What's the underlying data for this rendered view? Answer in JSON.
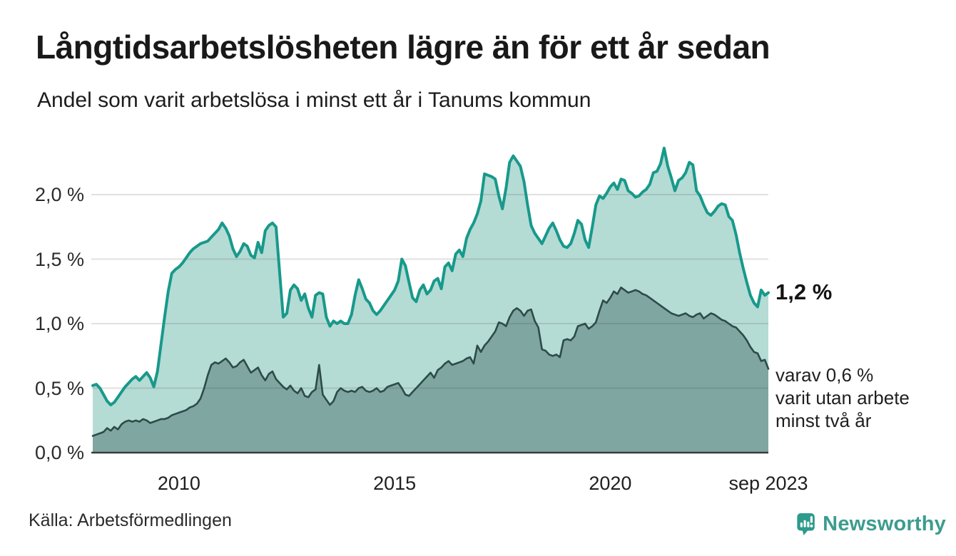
{
  "header": {
    "title": "Långtidsarbetslösheten lägre än för ett år sedan",
    "subtitle": "Andel som varit arbetslösa i minst ett år i Tanums kommun"
  },
  "annotations": {
    "latest_value_label": "1,2 %",
    "secondary_note_lines": [
      "varav 0,6 %",
      "varit utan arbete",
      "minst två år"
    ]
  },
  "footer": {
    "source": "Källa: Arbetsförmedlingen",
    "branding_name": "Newsworthy"
  },
  "colors": {
    "series1_line": "#18998b",
    "series1_fill": "#b5dbd5",
    "series2_line": "#2d4b48",
    "series2_fill": "#7fa6a0",
    "gridline": "rgba(70,70,70,0.16)",
    "axis": "#3b3b3b",
    "brand_teal": "#3c9c8f",
    "brand_icon": "#2d9a8c"
  },
  "chart_data": {
    "type": "area",
    "title": "Långtidsarbetslösheten lägre än för ett år sedan",
    "subtitle": "Andel som varit arbetslösa i minst ett år i Tanums kommun",
    "source": "Källa: Arbetsförmedlingen",
    "unit": "%",
    "frequency": "monthly",
    "x_start": "2008-01",
    "x_end": "2023-09",
    "ylim": [
      0,
      2.45
    ],
    "grid": true,
    "legend_position": "right-annotations",
    "x_ticks": [
      {
        "label": "2010",
        "month_index": 24
      },
      {
        "label": "2015",
        "month_index": 84
      },
      {
        "label": "2020",
        "month_index": 144
      },
      {
        "label": "sep 2023",
        "month_index": 188
      }
    ],
    "y_ticks": [
      {
        "label": "0,0 %",
        "value": 0
      },
      {
        "label": "0,5 %",
        "value": 0.5
      },
      {
        "label": "1,0 %",
        "value": 1.0
      },
      {
        "label": "1,5 %",
        "value": 1.5
      },
      {
        "label": "2,0 %",
        "value": 2.0
      }
    ],
    "annotations": [
      {
        "text": "1,2 %",
        "series": 0,
        "meaning": "latest value, share unemployed at least one year"
      },
      {
        "text": "varav 0,6 % varit utan arbete minst två år",
        "series": 1,
        "meaning": "latest value, share unemployed at least two years"
      }
    ],
    "series": [
      {
        "name": "Andel arbetslösa minst ett år",
        "color": "#18998b",
        "fill": "#b5dbd5",
        "latest_value": 1.2,
        "values": [
          0.52,
          0.53,
          0.5,
          0.45,
          0.4,
          0.37,
          0.39,
          0.43,
          0.47,
          0.51,
          0.54,
          0.57,
          0.59,
          0.56,
          0.59,
          0.62,
          0.58,
          0.51,
          0.63,
          0.84,
          1.05,
          1.25,
          1.39,
          1.42,
          1.44,
          1.47,
          1.51,
          1.55,
          1.58,
          1.6,
          1.62,
          1.63,
          1.64,
          1.67,
          1.7,
          1.73,
          1.78,
          1.74,
          1.68,
          1.58,
          1.52,
          1.56,
          1.62,
          1.6,
          1.53,
          1.51,
          1.63,
          1.55,
          1.72,
          1.76,
          1.78,
          1.75,
          1.4,
          1.05,
          1.08,
          1.26,
          1.3,
          1.27,
          1.18,
          1.23,
          1.12,
          1.05,
          1.22,
          1.24,
          1.23,
          1.05,
          0.98,
          1.02,
          1.0,
          1.02,
          1.0,
          1.0,
          1.07,
          1.22,
          1.34,
          1.27,
          1.19,
          1.16,
          1.1,
          1.07,
          1.1,
          1.14,
          1.18,
          1.22,
          1.26,
          1.33,
          1.5,
          1.45,
          1.32,
          1.2,
          1.17,
          1.26,
          1.3,
          1.23,
          1.26,
          1.33,
          1.35,
          1.27,
          1.44,
          1.47,
          1.41,
          1.54,
          1.57,
          1.52,
          1.66,
          1.73,
          1.78,
          1.85,
          1.95,
          2.16,
          2.15,
          2.14,
          2.12,
          1.99,
          1.89,
          2.05,
          2.25,
          2.3,
          2.26,
          2.22,
          2.1,
          1.92,
          1.76,
          1.7,
          1.66,
          1.62,
          1.68,
          1.74,
          1.78,
          1.72,
          1.65,
          1.6,
          1.59,
          1.62,
          1.7,
          1.8,
          1.77,
          1.65,
          1.59,
          1.75,
          1.92,
          1.99,
          1.97,
          2.01,
          2.06,
          2.09,
          2.04,
          2.12,
          2.11,
          2.03,
          2.01,
          1.98,
          1.99,
          2.02,
          2.04,
          2.08,
          2.17,
          2.18,
          2.24,
          2.36,
          2.22,
          2.13,
          2.03,
          2.11,
          2.13,
          2.17,
          2.25,
          2.23,
          2.03,
          1.99,
          1.92,
          1.86,
          1.84,
          1.87,
          1.91,
          1.93,
          1.92,
          1.83,
          1.8,
          1.69,
          1.55,
          1.43,
          1.32,
          1.22,
          1.16,
          1.13,
          1.26,
          1.22,
          1.24
        ]
      },
      {
        "name": "Andel arbetslösa minst två år",
        "color": "#2d4b48",
        "fill": "#7fa6a0",
        "latest_value": 0.6,
        "values": [
          0.13,
          0.14,
          0.15,
          0.16,
          0.19,
          0.17,
          0.2,
          0.18,
          0.22,
          0.24,
          0.25,
          0.24,
          0.25,
          0.24,
          0.26,
          0.25,
          0.23,
          0.24,
          0.25,
          0.26,
          0.26,
          0.27,
          0.29,
          0.3,
          0.31,
          0.32,
          0.33,
          0.35,
          0.36,
          0.38,
          0.42,
          0.5,
          0.6,
          0.68,
          0.7,
          0.69,
          0.71,
          0.73,
          0.7,
          0.66,
          0.67,
          0.7,
          0.72,
          0.67,
          0.62,
          0.64,
          0.66,
          0.6,
          0.56,
          0.61,
          0.63,
          0.57,
          0.54,
          0.51,
          0.49,
          0.52,
          0.48,
          0.46,
          0.5,
          0.44,
          0.43,
          0.47,
          0.49,
          0.68,
          0.45,
          0.41,
          0.37,
          0.4,
          0.47,
          0.5,
          0.48,
          0.47,
          0.48,
          0.47,
          0.5,
          0.51,
          0.48,
          0.47,
          0.48,
          0.5,
          0.47,
          0.48,
          0.51,
          0.52,
          0.53,
          0.54,
          0.5,
          0.45,
          0.44,
          0.47,
          0.5,
          0.53,
          0.56,
          0.59,
          0.62,
          0.58,
          0.64,
          0.66,
          0.69,
          0.71,
          0.68,
          0.69,
          0.7,
          0.71,
          0.73,
          0.74,
          0.69,
          0.83,
          0.78,
          0.83,
          0.86,
          0.9,
          0.94,
          1.01,
          1.0,
          0.98,
          1.05,
          1.1,
          1.12,
          1.1,
          1.06,
          1.1,
          1.11,
          1.02,
          0.97,
          0.8,
          0.79,
          0.76,
          0.75,
          0.76,
          0.74,
          0.87,
          0.88,
          0.87,
          0.9,
          0.98,
          0.99,
          1.0,
          0.96,
          0.98,
          1.01,
          1.1,
          1.18,
          1.16,
          1.2,
          1.25,
          1.23,
          1.28,
          1.26,
          1.24,
          1.25,
          1.26,
          1.25,
          1.23,
          1.22,
          1.2,
          1.18,
          1.16,
          1.14,
          1.12,
          1.1,
          1.08,
          1.07,
          1.06,
          1.07,
          1.08,
          1.06,
          1.05,
          1.07,
          1.08,
          1.04,
          1.06,
          1.08,
          1.07,
          1.05,
          1.03,
          1.02,
          1.0,
          0.98,
          0.97,
          0.94,
          0.91,
          0.87,
          0.82,
          0.78,
          0.77,
          0.71,
          0.72,
          0.65
        ]
      }
    ]
  }
}
